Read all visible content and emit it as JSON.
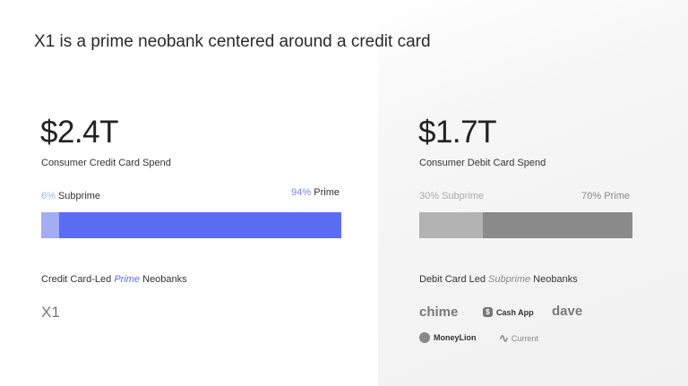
{
  "title": "X1 is a prime neobank centered around a credit card",
  "left": {
    "amount": "$2.4T",
    "label": "Consumer Credit Card Spend",
    "subprime_pct": "6%",
    "subprime_label": "Subprime",
    "prime_pct": "94%",
    "prime_label": "Prime",
    "subprime_fraction": 0.06,
    "prime_fraction": 0.94,
    "colors": {
      "subprime": "#a4acf4",
      "prime": "#5b6ef2",
      "pct_text": "#7b86ef"
    },
    "heading_pre": "Credit Card-Led ",
    "heading_em": "Prime",
    "heading_post": " Neobanks",
    "logos": [
      "X1"
    ]
  },
  "right": {
    "amount": "$1.7T",
    "label": "Consumer Debit Card Spend",
    "subprime_pct": "30%",
    "subprime_label": "Subprime",
    "prime_pct": "70%",
    "prime_label": "Prime",
    "subprime_fraction": 0.3,
    "prime_fraction": 0.7,
    "colors": {
      "subprime": "#b3b3b3",
      "prime": "#8a8a8a"
    },
    "heading_pre": "Debit Card Led ",
    "heading_em": "Subprime",
    "heading_post": " Neobanks",
    "logos": [
      "chime",
      "Cash App",
      "Dave",
      "MoneyLion",
      "Current"
    ]
  }
}
